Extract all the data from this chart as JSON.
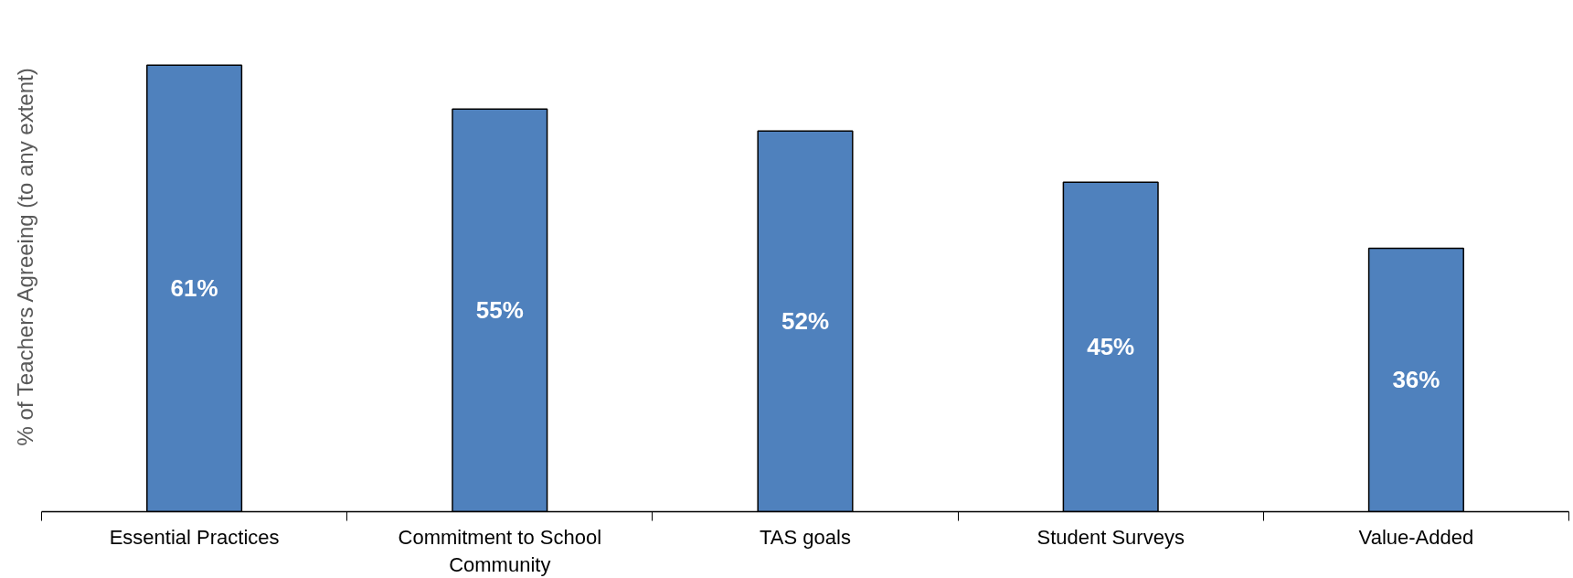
{
  "chart_data": {
    "type": "bar",
    "ylabel": "% of Teachers Agreeing (to any extent)",
    "categories": [
      "Essential Practices",
      "Commitment to School Community",
      "TAS goals",
      "Student Surveys",
      "Value-Added"
    ],
    "values": [
      61,
      55,
      52,
      45,
      36
    ],
    "value_labels": [
      "61%",
      "55%",
      "52%",
      "45%",
      "36%"
    ],
    "color": "#4f81bd",
    "grid": false
  }
}
